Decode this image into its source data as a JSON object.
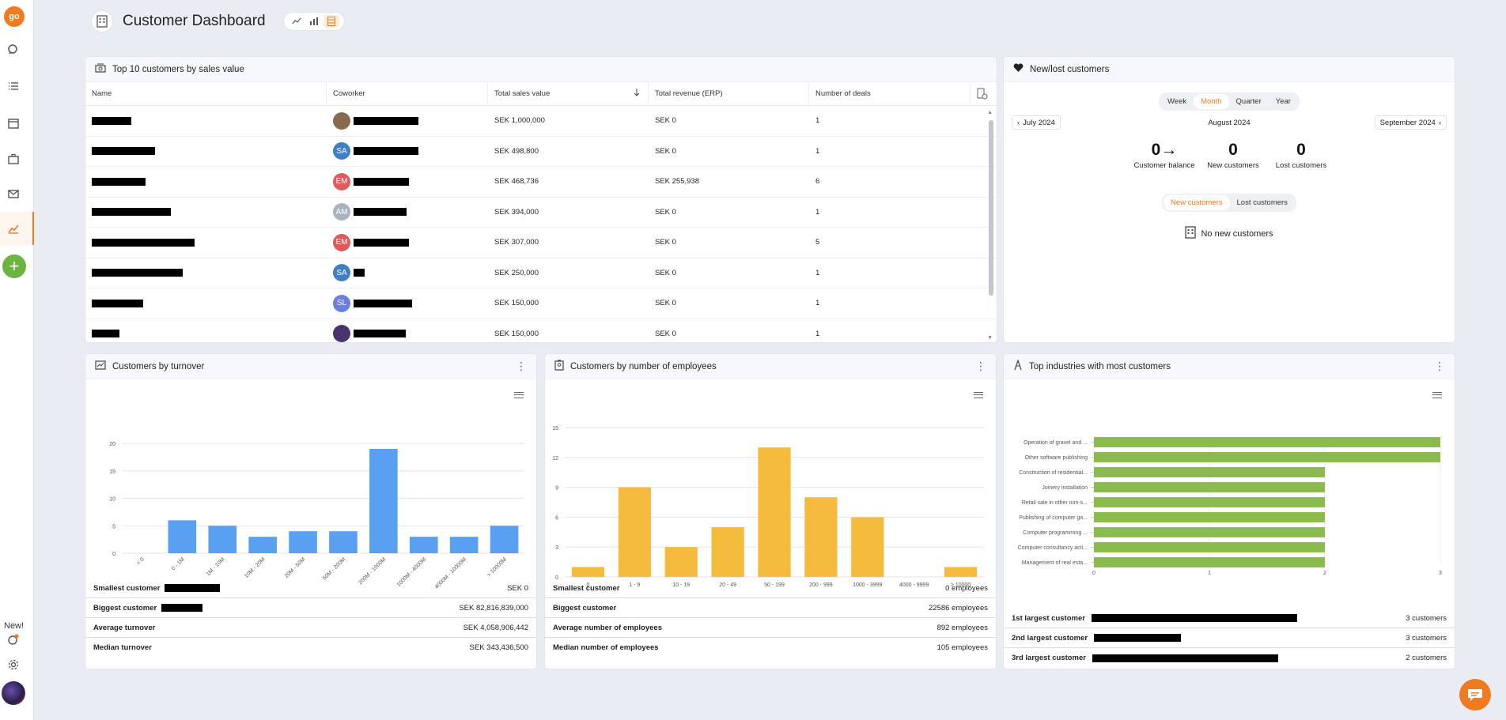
{
  "header": {
    "title": "Customer Dashboard"
  },
  "sidebar": {
    "logo": "go",
    "new_label": "New!"
  },
  "top10": {
    "title": "Top 10 customers by sales value",
    "columns": [
      "Name",
      "Coworker",
      "Total sales value",
      "Total revenue (ERP)",
      "Number of deals"
    ],
    "rows": [
      {
        "initials": "",
        "color": "#8a6a4f",
        "sales": "SEK 1,000,000",
        "revenue": "SEK 0",
        "deals": "1"
      },
      {
        "initials": "SA",
        "color": "#3f7fc4",
        "sales": "SEK 498,800",
        "revenue": "SEK 0",
        "deals": "1"
      },
      {
        "initials": "EM",
        "color": "#e05a5a",
        "sales": "SEK 468,736",
        "revenue": "SEK 255,938",
        "deals": "6"
      },
      {
        "initials": "AM",
        "color": "#a9b2bf",
        "sales": "SEK 394,000",
        "revenue": "SEK 0",
        "deals": "1"
      },
      {
        "initials": "EM",
        "color": "#e05a5a",
        "sales": "SEK 307,000",
        "revenue": "SEK 0",
        "deals": "5"
      },
      {
        "initials": "SA",
        "color": "#3f7fc4",
        "sales": "SEK 250,000",
        "revenue": "SEK 0",
        "deals": "1"
      },
      {
        "initials": "SL",
        "color": "#6c7fe0",
        "sales": "SEK 150,000",
        "revenue": "SEK 0",
        "deals": "1"
      },
      {
        "initials": "",
        "color": "#4a3470",
        "sales": "SEK 150,000",
        "revenue": "SEK 0",
        "deals": "1"
      }
    ]
  },
  "newlost": {
    "title": "New/lost customers",
    "periods": [
      "Week",
      "Month",
      "Quarter",
      "Year"
    ],
    "active_period": "Month",
    "prev": "July 2024",
    "current": "August 2024",
    "next": "September 2024",
    "balance": {
      "value": "0",
      "label": "Customer balance"
    },
    "new": {
      "value": "0",
      "label": "New customers"
    },
    "lost": {
      "value": "0",
      "label": "Lost customers"
    },
    "tabs": [
      "New customers",
      "Lost customers"
    ],
    "empty": "No new customers"
  },
  "turnover": {
    "title": "Customers by turnover",
    "summary": [
      {
        "label": "Smallest customer",
        "value": "SEK 0"
      },
      {
        "label": "Biggest customer",
        "value": "SEK 82,816,839,000"
      },
      {
        "label": "Average turnover",
        "value": "SEK 4,058,906,442"
      },
      {
        "label": "Median turnover",
        "value": "SEK 343,436,500"
      }
    ]
  },
  "employees": {
    "title": "Customers by number of employees",
    "summary": [
      {
        "label": "Smallest customer",
        "value": "0 employees"
      },
      {
        "label": "Biggest customer",
        "value": "22586 employees"
      },
      {
        "label": "Average number of employees",
        "value": "892 employees"
      },
      {
        "label": "Median number of employees",
        "value": "105 employees"
      }
    ]
  },
  "industries": {
    "title": "Top industries with most customers",
    "summary": [
      {
        "label": "1st largest customer",
        "value": "3 customers"
      },
      {
        "label": "2nd largest customer",
        "value": "3 customers"
      },
      {
        "label": "3rd largest customer",
        "value": "2 customers"
      }
    ]
  },
  "chart_data": [
    {
      "type": "bar",
      "color": "#5aa0f0",
      "categories": [
        "< 0",
        "0 - 1M",
        "1M - 10M",
        "10M - 20M",
        "20M - 50M",
        "50M - 200M",
        "200M - 1000M",
        "1000M - 4000M",
        "4000M - 10000M",
        "> 10000M"
      ],
      "values": [
        0,
        6,
        5,
        3,
        4,
        4,
        19,
        3,
        3,
        5
      ],
      "ylim": [
        0,
        20
      ],
      "yticks": [
        0,
        5,
        10,
        15,
        20
      ]
    },
    {
      "type": "bar",
      "color": "#f5bb3c",
      "categories": [
        "0",
        "1 - 9",
        "10 - 19",
        "20 - 49",
        "50 - 199",
        "200 - 999",
        "1000 - 3999",
        "4000 - 9999",
        "> 10000"
      ],
      "values": [
        1,
        9,
        3,
        5,
        13,
        8,
        6,
        0,
        1
      ],
      "ylim": [
        0,
        15
      ],
      "yticks": [
        0,
        3,
        6,
        9,
        12,
        15
      ]
    },
    {
      "type": "bar",
      "orientation": "horizontal",
      "color": "#8bbb4f",
      "categories": [
        "Operation of gravel and ...",
        "Other software publishing",
        "Construction of residential...",
        "Joinery installation",
        "Retail sale in other non-s...",
        "Publishing of computer ga...",
        "Computer programming ...",
        "Computer consultancy acti...",
        "Management of real esta..."
      ],
      "values": [
        3,
        3,
        2,
        2,
        2,
        2,
        2,
        2,
        2
      ],
      "xlim": [
        0,
        3
      ],
      "xticks": [
        0,
        1,
        2,
        3
      ]
    }
  ]
}
